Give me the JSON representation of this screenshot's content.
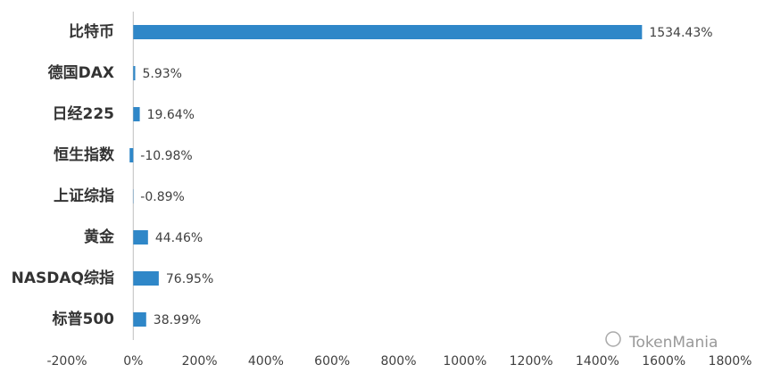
{
  "chart_data": {
    "type": "barh",
    "categories": [
      "比特币",
      "德国DAX",
      "日经225",
      "恒生指数",
      "上证综指",
      "黄金",
      "NASDAQ综指",
      "标普500"
    ],
    "values": [
      1534.43,
      5.93,
      19.64,
      -10.98,
      -0.89,
      44.46,
      76.95,
      38.99
    ],
    "value_labels": [
      "1534.43%",
      "5.93%",
      "19.64%",
      "-10.98%",
      "-0.89%",
      "44.46%",
      "76.95%",
      "38.99%"
    ],
    "color": "#2f87c8",
    "xlim": [
      -200,
      1800
    ],
    "xticks": [
      {
        "value": -200,
        "label": "-200%"
      },
      {
        "value": 0,
        "label": "0%"
      },
      {
        "value": 200,
        "label": "200%"
      },
      {
        "value": 400,
        "label": "400%"
      },
      {
        "value": 600,
        "label": "600%"
      },
      {
        "value": 800,
        "label": "800%"
      },
      {
        "value": 1000,
        "label": "1000%"
      },
      {
        "value": 1200,
        "label": "1200%"
      },
      {
        "value": 1400,
        "label": "1400%"
      },
      {
        "value": 1600,
        "label": "1600%"
      },
      {
        "value": 1800,
        "label": "1800%"
      }
    ],
    "grid": false,
    "watermark": "TokenMania"
  }
}
